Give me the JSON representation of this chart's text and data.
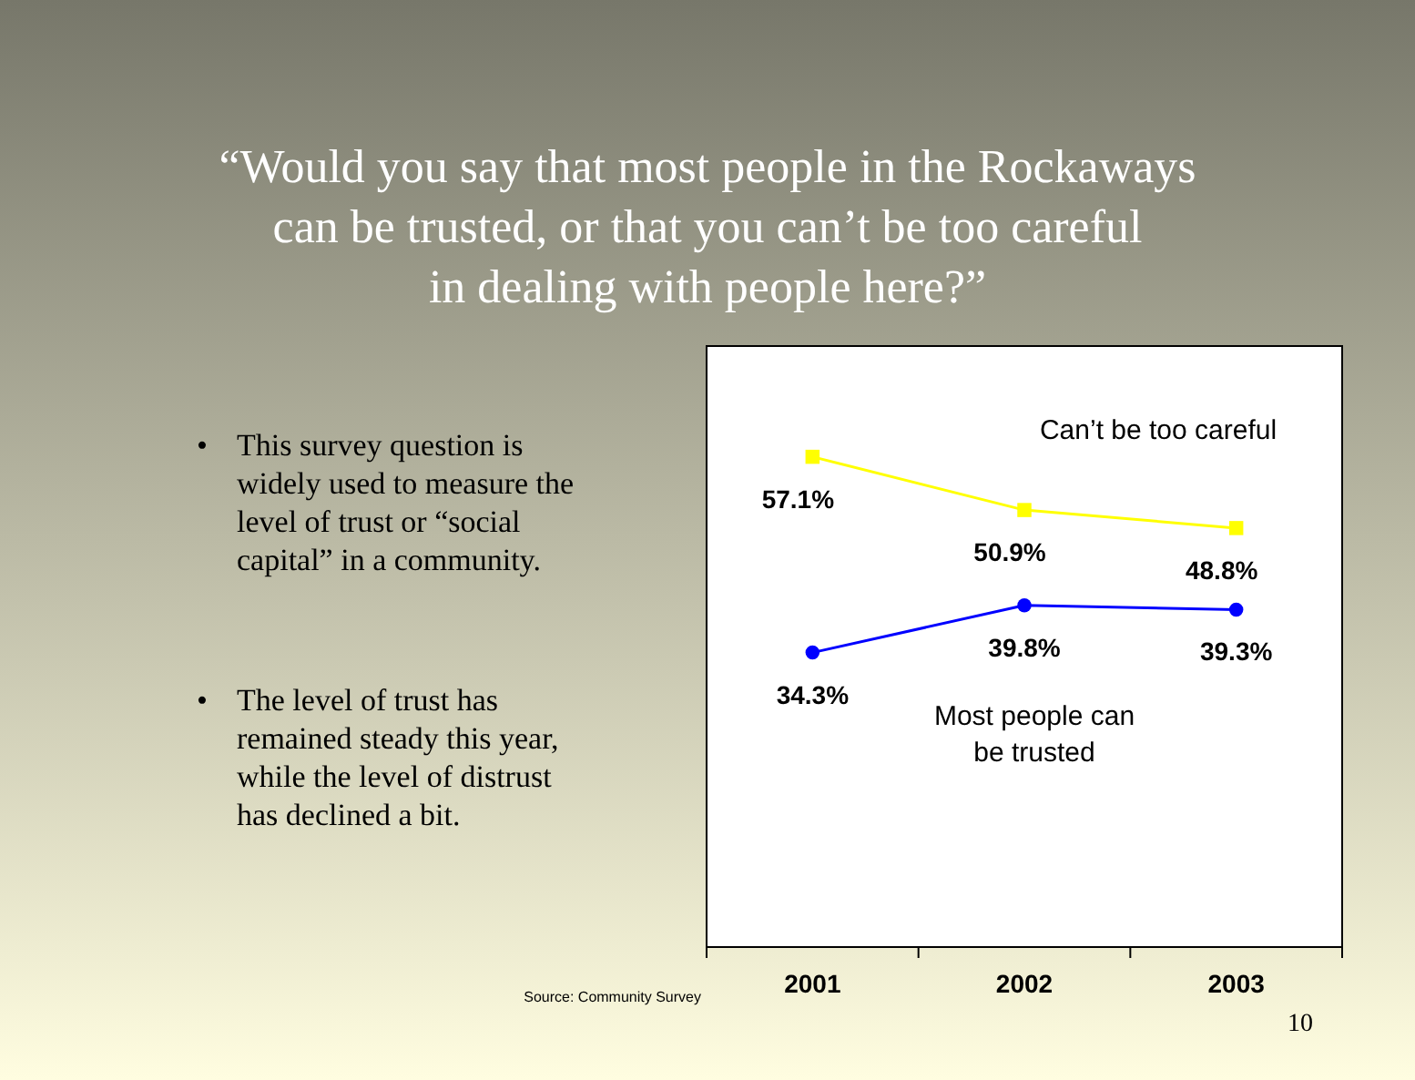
{
  "chart_data": {
    "type": "line",
    "title": "“Would you say that most people in the Rockaways can be trusted, or that you can’t be too careful in dealing with people here?”",
    "categories": [
      "2001",
      "2002",
      "2003"
    ],
    "series": [
      {
        "name": "Can’t be too careful",
        "color": "#ffff00",
        "marker": "square",
        "values": [
          57.1,
          50.9,
          48.8
        ],
        "value_labels": [
          "57.1%",
          "50.9%",
          "48.8%"
        ]
      },
      {
        "name": "Most people can be trusted",
        "color": "#0000ff",
        "marker": "circle",
        "values": [
          34.3,
          39.8,
          39.3
        ],
        "value_labels": [
          "34.3%",
          "39.8%",
          "39.3%"
        ]
      }
    ],
    "ylim": [
      0,
      70
    ],
    "annotations": [
      "• This survey question is widely used to measure the level of trust or “social capital” in a community.",
      "• The level of trust has remained steady this year, while the level of distrust has declined a bit.",
      "Source: Community Survey",
      "10"
    ]
  }
}
